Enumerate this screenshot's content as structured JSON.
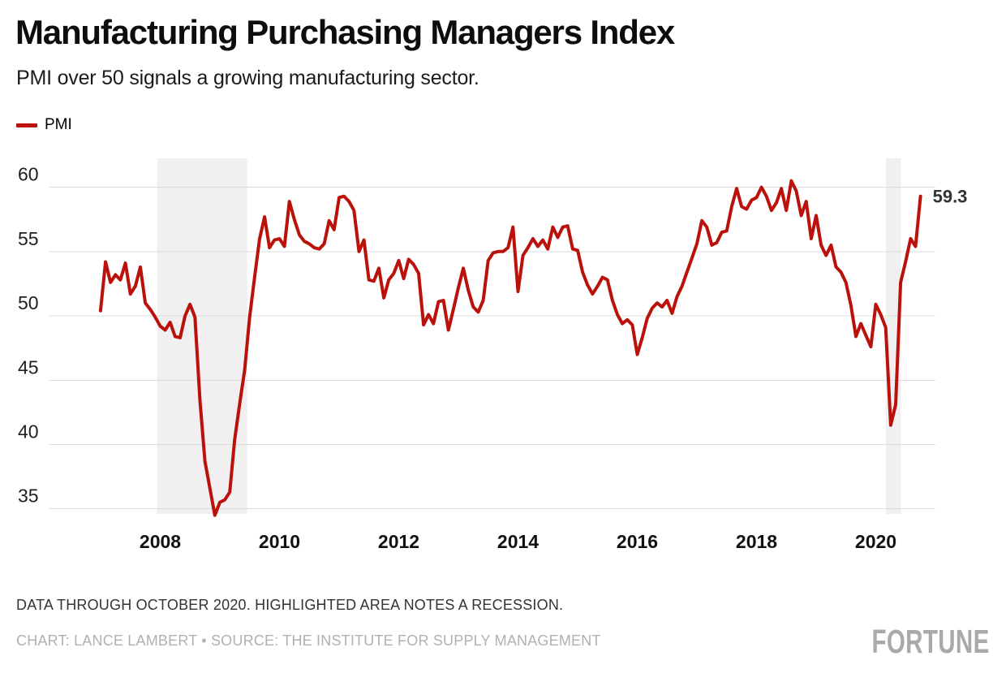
{
  "header": {
    "title": "Manufacturing Purchasing Managers Index",
    "subtitle": "PMI over 50 signals a growing manufacturing sector."
  },
  "legend": {
    "label": "PMI"
  },
  "footer": {
    "note": "DATA THROUGH OCTOBER 2020. HIGHLIGHTED AREA NOTES A RECESSION.",
    "credit": "CHART: LANCE LAMBERT • SOURCE: THE INSTITUTE FOR SUPPLY MANAGEMENT",
    "brand": "FORTUNE"
  },
  "colors": {
    "line": "#ba120b",
    "grid": "#dcdcdc",
    "highlight": "#f0f0f0",
    "y_label": "#1f1f1f",
    "x_label": "#111111",
    "end_label": "#333333",
    "note": "#333333",
    "credit": "#b1b1b1",
    "brand": "#a9a9a9"
  },
  "chart_data": {
    "type": "line",
    "title": "Manufacturing Purchasing Managers Index",
    "subtitle": "PMI over 50 signals a growing manufacturing sector.",
    "legend_position": "top-left",
    "grid": "horizontal-only",
    "x_ticks": [
      2008,
      2010,
      2012,
      2014,
      2016,
      2018,
      2020
    ],
    "y_ticks": [
      60,
      55,
      50,
      45,
      40,
      35
    ],
    "xlim": [
      2006.13,
      2021.0
    ],
    "ylim": [
      34.6,
      62.25
    ],
    "highlights": [
      {
        "from": 2007.95,
        "to": 2009.46,
        "meaning": "recession"
      },
      {
        "from": 2020.17,
        "to": 2020.42,
        "meaning": "recession"
      }
    ],
    "last_value_label": "59.3",
    "last_point": {
      "date": "2020-10",
      "value": 59.3
    },
    "series": [
      {
        "name": "PMI",
        "color": "#ba120b",
        "start": "2007-01",
        "end": "2020-10",
        "frequency": "monthly",
        "values": [
          50.4,
          54.2,
          52.6,
          53.2,
          52.8,
          54.1,
          51.7,
          52.3,
          53.8,
          51.0,
          50.5,
          49.9,
          49.2,
          48.9,
          49.5,
          48.4,
          48.3,
          50.0,
          50.9,
          49.9,
          43.4,
          38.7,
          36.6,
          34.5,
          35.5,
          35.7,
          36.3,
          40.4,
          43.2,
          45.8,
          49.9,
          53.0,
          56.0,
          57.7,
          55.3,
          55.9,
          56.0,
          55.4,
          58.9,
          57.5,
          56.3,
          55.8,
          55.6,
          55.3,
          55.2,
          55.6,
          57.4,
          56.7,
          59.2,
          59.3,
          58.9,
          58.2,
          55.0,
          55.9,
          52.8,
          52.7,
          53.7,
          51.4,
          52.8,
          53.3,
          54.3,
          52.9,
          54.4,
          54.0,
          53.3,
          49.3,
          50.1,
          49.4,
          51.1,
          51.2,
          48.9,
          50.5,
          52.2,
          53.7,
          52.0,
          50.7,
          50.3,
          51.2,
          54.3,
          54.9,
          55.0,
          55.0,
          55.3,
          56.9,
          51.9,
          54.7,
          55.3,
          56.0,
          55.4,
          55.9,
          55.2,
          56.9,
          56.1,
          56.9,
          57.0,
          55.2,
          55.1,
          53.4,
          52.4,
          51.7,
          52.3,
          53.0,
          52.8,
          51.2,
          50.1,
          49.4,
          49.7,
          49.3,
          47.0,
          48.3,
          49.8,
          50.6,
          51.0,
          50.7,
          51.2,
          50.2,
          51.5,
          52.3,
          53.4,
          54.5,
          55.6,
          57.4,
          56.9,
          55.5,
          55.7,
          56.5,
          56.6,
          58.5,
          59.9,
          58.5,
          58.3,
          59.0,
          59.2,
          60.0,
          59.3,
          58.2,
          58.8,
          59.9,
          58.2,
          60.5,
          59.7,
          57.8,
          58.9,
          56.0,
          57.8,
          55.5,
          54.7,
          55.5,
          53.8,
          53.4,
          52.6,
          50.8,
          48.4,
          49.4,
          48.5,
          47.6,
          50.9,
          50.1,
          49.1,
          41.5,
          43.1,
          52.6,
          54.2,
          56.0,
          55.4,
          59.3
        ]
      }
    ]
  }
}
